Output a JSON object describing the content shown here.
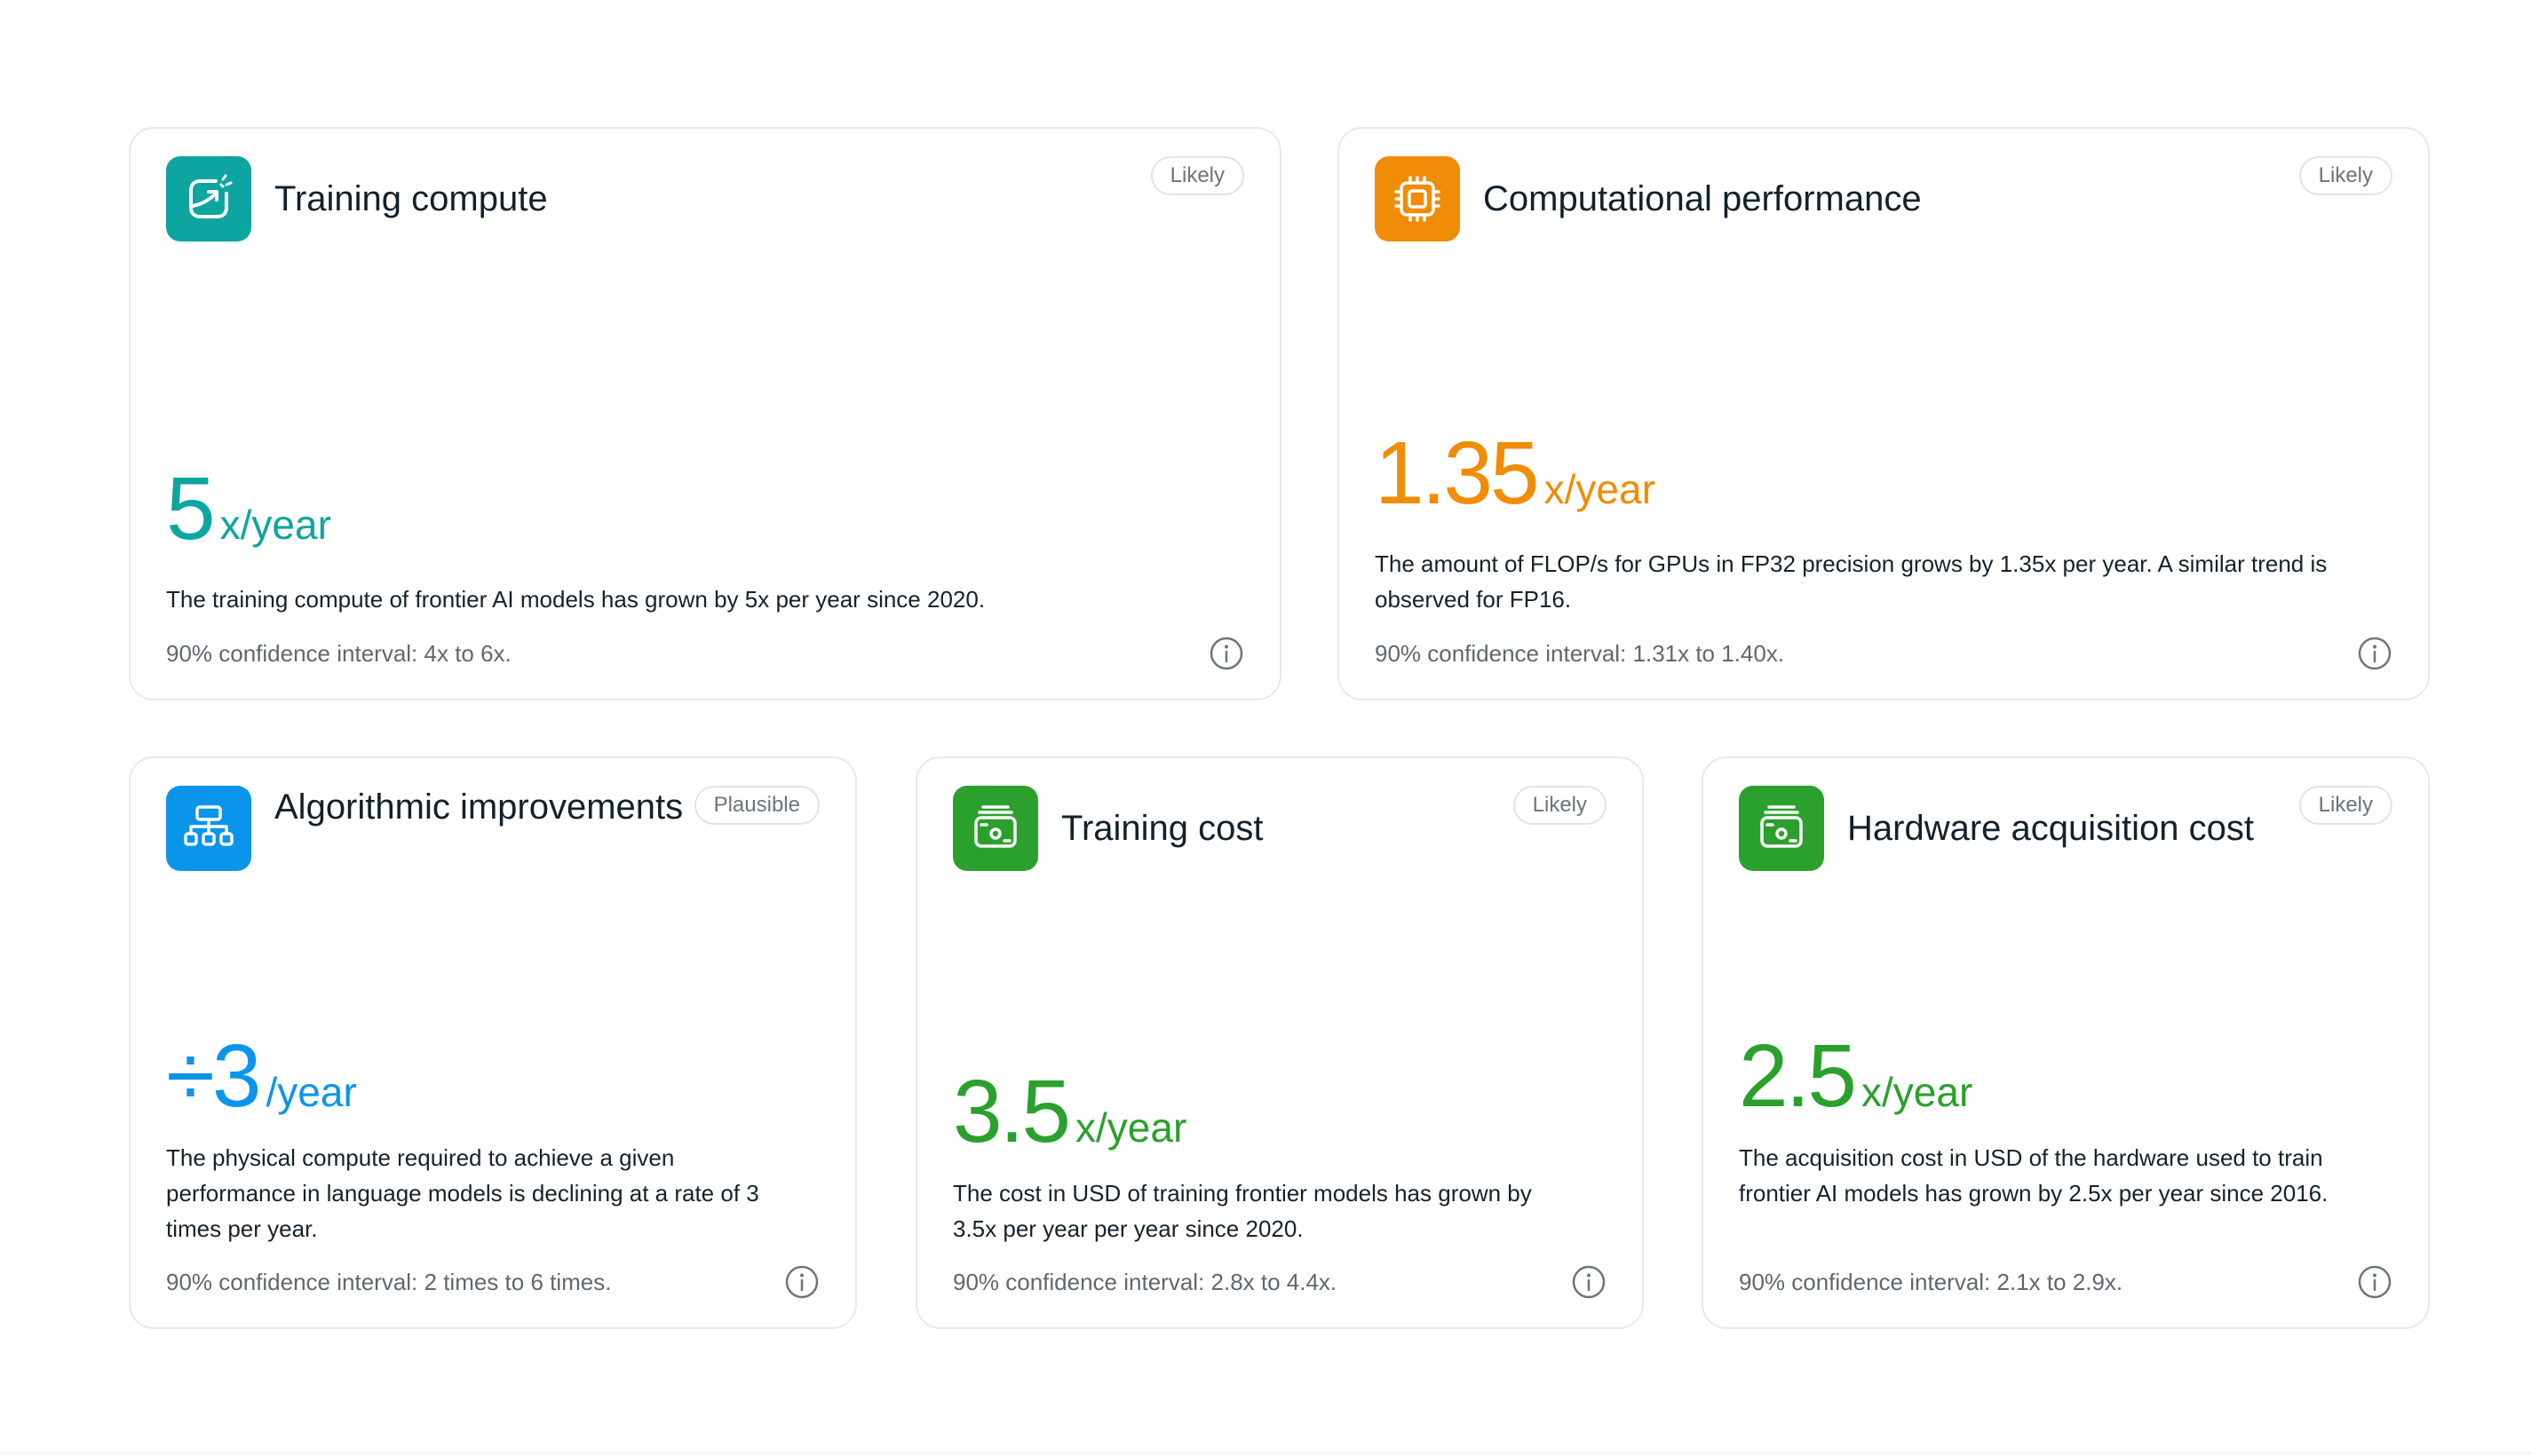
{
  "colors": {
    "teal": "#0ea5a0",
    "orange": "#f08c05",
    "blue": "#0b95ea",
    "green": "#2ba02d"
  },
  "cards": [
    {
      "title": "Training compute",
      "badge": "Likely",
      "value": "5",
      "unit": "x/year",
      "description": "The training compute of frontier AI models has grown by 5x per year since 2020.",
      "ci": "90% confidence interval: 4x to 6x.",
      "icon": "chart-growth-icon",
      "color": "#0ea5a0"
    },
    {
      "title": "Computational performance",
      "badge": "Likely",
      "value": "1.35",
      "unit": "x/year",
      "description": "The amount of FLOP/s for GPUs in FP32 precision grows by 1.35x per year. A similar trend is observed for FP16.",
      "ci": "90% confidence interval: 1.31x to 1.40x.",
      "icon": "chip-icon",
      "color": "#f08c05"
    },
    {
      "title": "Algorithmic improvements",
      "badge": "Plausible",
      "value": "÷3",
      "unit": "/year",
      "description": "The physical compute required to achieve a given performance in language models is declining at a rate of 3 times per year.",
      "ci": "90% confidence interval: 2 times to 6 times.",
      "icon": "hierarchy-icon",
      "color": "#0b95ea"
    },
    {
      "title": "Training cost",
      "badge": "Likely",
      "value": "3.5",
      "unit": "x/year",
      "description": "The cost in USD of training frontier models has grown by 3.5x per year per year since 2020.",
      "ci": "90% confidence interval: 2.8x to 4.4x.",
      "icon": "money-stack-icon",
      "color": "#2ba02d"
    },
    {
      "title": "Hardware acquisition cost",
      "badge": "Likely",
      "value": "2.5",
      "unit": "x/year",
      "description": "The acquisition cost in USD of the hardware used to train frontier AI models has grown by 2.5x per year since 2016.",
      "ci": "90% confidence interval: 2.1x to 2.9x.",
      "icon": "money-stack-icon",
      "color": "#2ba02d"
    }
  ]
}
